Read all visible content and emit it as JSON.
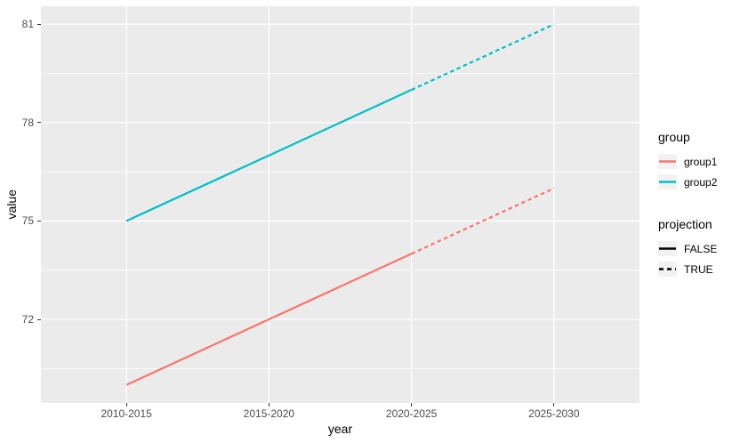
{
  "chart_data": {
    "type": "line",
    "title": "",
    "xlabel": "year",
    "ylabel": "value",
    "categories": [
      "2010-2015",
      "2015-2020",
      "2020-2025",
      "2025-2030"
    ],
    "series": [
      {
        "name": "group1",
        "color": "#F8766D",
        "values": [
          70,
          72,
          74,
          76
        ]
      },
      {
        "name": "group2",
        "color": "#00BFC4",
        "values": [
          75,
          77,
          79,
          81
        ]
      }
    ],
    "projection_from_index": 2,
    "ylim": [
      69.45,
      81.55
    ],
    "yticks": [
      72,
      75,
      78,
      81
    ],
    "yticks_minor": [
      70.5,
      73.5,
      76.5,
      79.5
    ],
    "grid": "on",
    "legend_position": "right"
  },
  "legend": {
    "groups": [
      {
        "title": "group",
        "entries": [
          {
            "label": "group1",
            "color": "#F8766D",
            "dash": false
          },
          {
            "label": "group2",
            "color": "#00BFC4",
            "dash": false
          }
        ]
      },
      {
        "title": "projection",
        "entries": [
          {
            "label": "FALSE",
            "color": "#000000",
            "dash": false
          },
          {
            "label": "TRUE",
            "color": "#000000",
            "dash": true
          }
        ]
      }
    ]
  },
  "colors": {
    "figure_background": "#FFFFFF",
    "panel_background": "#EBEBEB",
    "grid": "#FFFFFF",
    "axis_text": "#4D4D4D",
    "tick_mark": "#333333",
    "legend_key_fill": "#F2F2F2",
    "group1": "#F8766D",
    "group2": "#00BFC4"
  }
}
